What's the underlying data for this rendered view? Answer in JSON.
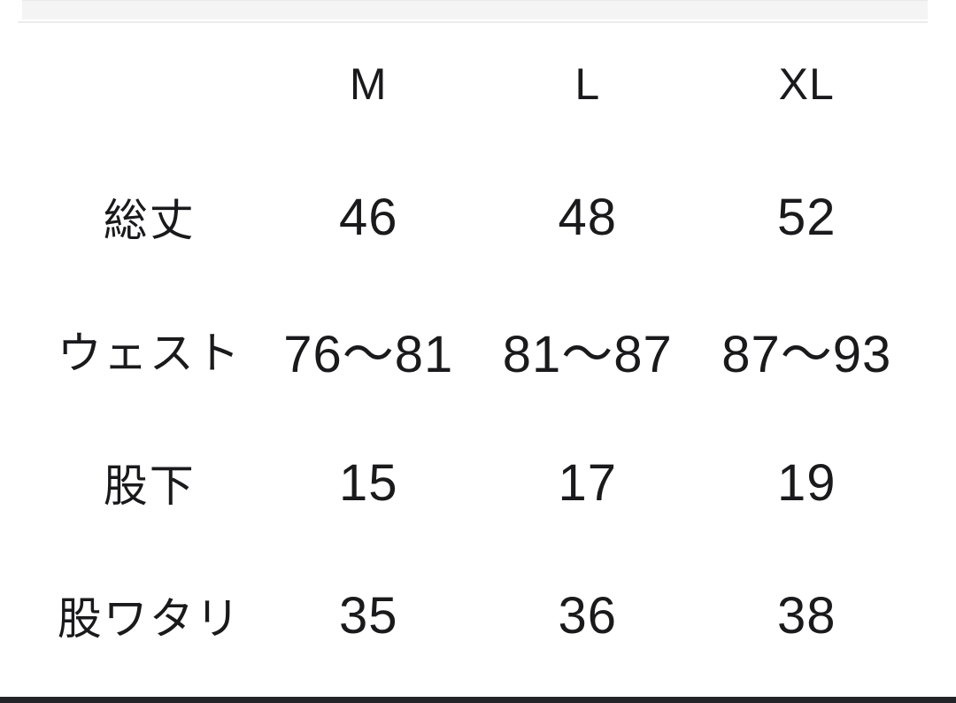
{
  "page": {
    "background_color": "#ffffff",
    "text_color": "#1a1a1c",
    "top_band_color": "#f4f4f5",
    "divider_color": "#ececee",
    "bottom_bar_color": "#232428"
  },
  "size_chart": {
    "column_headers": [
      "M",
      "L",
      "XL"
    ],
    "rows": [
      {
        "label": "総丈",
        "values": [
          "46",
          "48",
          "52"
        ]
      },
      {
        "label": "ウェスト",
        "values": [
          "76〜81",
          "81〜87",
          "87〜93"
        ]
      },
      {
        "label": "股下",
        "values": [
          "15",
          "17",
          "19"
        ]
      },
      {
        "label": "股ワタリ",
        "values": [
          "35",
          "36",
          "38"
        ]
      }
    ]
  },
  "chart_data": {
    "type": "table",
    "columns": [
      "",
      "M",
      "L",
      "XL"
    ],
    "rows": [
      [
        "総丈",
        "46",
        "48",
        "52"
      ],
      [
        "ウェスト",
        "76〜81",
        "81〜87",
        "87〜93"
      ],
      [
        "股下",
        "15",
        "17",
        "19"
      ],
      [
        "股ワタリ",
        "35",
        "36",
        "38"
      ]
    ]
  }
}
